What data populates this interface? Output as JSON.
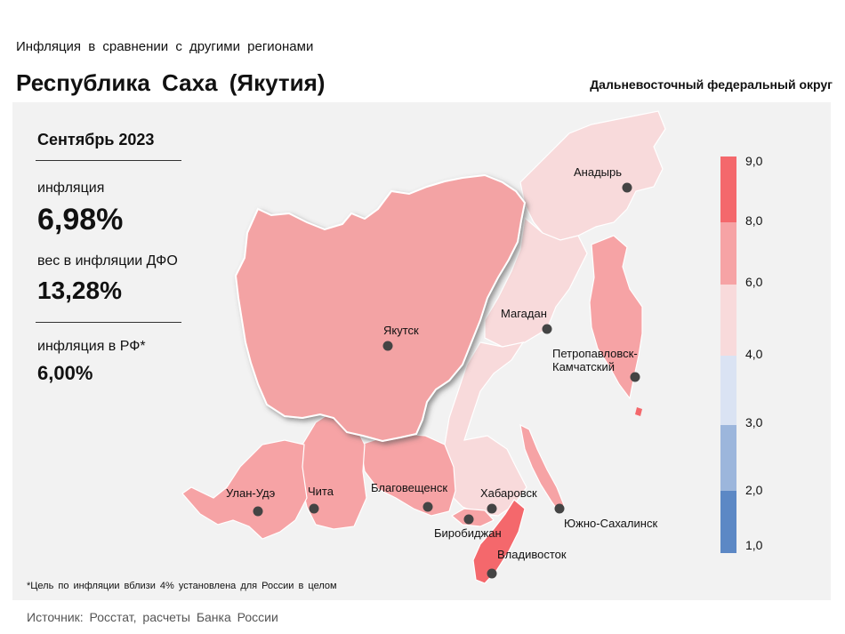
{
  "header": {
    "subtitle": "Инфляция в сравнении с другими регионами",
    "title": "Республика Саха (Якутия)",
    "district": "Дальневосточный федеральный округ"
  },
  "stats": {
    "period": "Сентябрь 2023",
    "inflation_label": "инфляция",
    "inflation_value": "6,98%",
    "weight_label": "вес в инфляции ДФО",
    "weight_value": "13,28%",
    "russia_label": "инфляция в РФ*",
    "russia_value": "6,00%"
  },
  "footnote": "*Цель по инфляции вблизи 4% установлена для России в целом",
  "source": "Источник: Росстат, расчеты Банка России",
  "colors": {
    "band_8_9": "#f4686c",
    "band_6_8": "#f6a3a5",
    "band_4_6": "#f8dadb",
    "band_3_4": "#dae3f3",
    "band_2_3": "#9cb6dc",
    "band_1_2": "#5c88c5",
    "highlight": "#f3a3a4"
  },
  "scale": {
    "ticks": [
      "9,0",
      "8,0",
      "6,0",
      "4,0",
      "3,0",
      "2,0",
      "1,0"
    ]
  },
  "cities": {
    "anadyr": "Анадырь",
    "magadan": "Магадан",
    "yakutsk": "Якутск",
    "petropavlovsk_1": "Петропавловск-",
    "petropavlovsk_2": "Камчатский",
    "ulan_ude": "Улан-Удэ",
    "chita": "Чита",
    "blagoveshchensk": "Благовещенск",
    "khabarovsk": "Хабаровск",
    "yuzhno": "Южно-Сахалинск",
    "birobidzhan": "Биробиджан",
    "vladivostok": "Владивосток"
  }
}
